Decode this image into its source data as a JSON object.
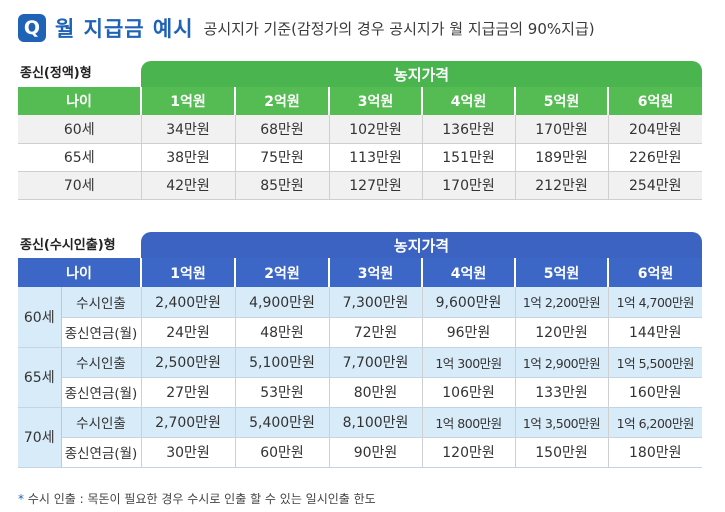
{
  "header": {
    "badge": "Q",
    "title": "월 지급금 예시",
    "subtitle": "공시지가 기준(감정가의 경우 공시지가 월 지급금의 90%지급)"
  },
  "section1": {
    "label": "종신(정액)형",
    "banner": "농지가격",
    "columns": [
      "나이",
      "1억원",
      "2억원",
      "3억원",
      "4억원",
      "5억원",
      "6억원"
    ],
    "rows": [
      {
        "age": "60세",
        "values": [
          "34만원",
          "68만원",
          "102만원",
          "136만원",
          "170만원",
          "204만원"
        ]
      },
      {
        "age": "65세",
        "values": [
          "38만원",
          "75만원",
          "113만원",
          "151만원",
          "189만원",
          "226만원"
        ]
      },
      {
        "age": "70세",
        "values": [
          "42만원",
          "85만원",
          "127만원",
          "170만원",
          "212만원",
          "254만원"
        ]
      }
    ]
  },
  "section2": {
    "label": "종신(수시인출)형",
    "banner": "농지가격",
    "columns": [
      "나이",
      "1억원",
      "2억원",
      "3억원",
      "4억원",
      "5억원",
      "6억원"
    ],
    "groups": [
      {
        "age": "60세",
        "withdraw_label": "수시인출",
        "withdraw": [
          "2,400만원",
          "4,900만원",
          "7,300만원",
          "9,600만원",
          "1억 2,200만원",
          "1억 4,700만원"
        ],
        "pension_label": "종신연금(월)",
        "pension": [
          "24만원",
          "48만원",
          "72만원",
          "96만원",
          "120만원",
          "144만원"
        ]
      },
      {
        "age": "65세",
        "withdraw_label": "수시인출",
        "withdraw": [
          "2,500만원",
          "5,100만원",
          "7,700만원",
          "1억 300만원",
          "1억 2,900만원",
          "1억 5,500만원"
        ],
        "pension_label": "종신연금(월)",
        "pension": [
          "27만원",
          "53만원",
          "80만원",
          "106만원",
          "133만원",
          "160만원"
        ]
      },
      {
        "age": "70세",
        "withdraw_label": "수시인출",
        "withdraw": [
          "2,700만원",
          "5,400만원",
          "8,100만원",
          "1억 800만원",
          "1억 3,500만원",
          "1억 6,200만원"
        ],
        "pension_label": "종신연금(월)",
        "pension": [
          "30만원",
          "60만원",
          "90만원",
          "120만원",
          "150만원",
          "180만원"
        ]
      }
    ]
  },
  "footnote": {
    "marker": "*",
    "text": "수시 인출 : 목돈이 필요한 경우 수시로 인출 할 수 있는 일시인출 한도"
  },
  "colors": {
    "title_blue": "#1f63b7",
    "green_header": "#55bb53",
    "blue_header": "#3d67c6",
    "light_blue_row": "#d8ebf8"
  }
}
